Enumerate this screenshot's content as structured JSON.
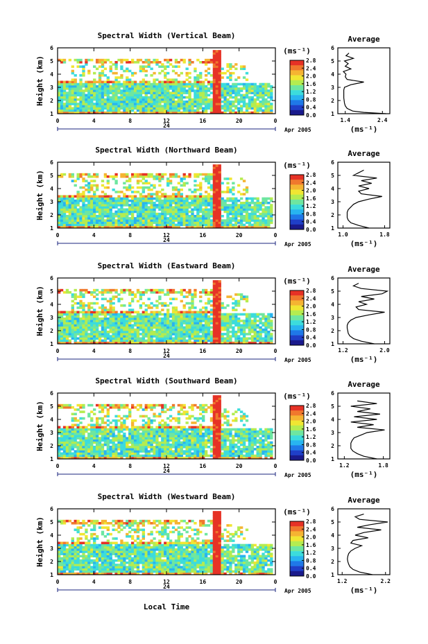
{
  "figure": {
    "x_label": "Local Time",
    "date_label": "Apr 2005",
    "day_label": "24",
    "colorbar_unit": "(ms⁻¹)",
    "avg_title": "Average",
    "avg_unit": "(ms⁻¹)",
    "y_label": "Height (km)"
  },
  "colors": {
    "scale": [
      "#1a1a8c",
      "#1f3fc8",
      "#1f78e8",
      "#28b4f0",
      "#3cdcdc",
      "#6ee6a0",
      "#b4ec50",
      "#f0e632",
      "#f5b432",
      "#f0782d",
      "#e63226"
    ]
  },
  "chart_data": [
    {
      "type": "heatmap",
      "title": "Spectral Width (Vertical Beam)",
      "xlabel": "",
      "ylabel": "Height (km)",
      "x_ticks": [
        "0",
        "4",
        "8",
        "12",
        "16",
        "20",
        "0"
      ],
      "y_ticks": [
        "1",
        "2",
        "3",
        "4",
        "5",
        "6"
      ],
      "colorbar_ticks": [
        "0.0",
        "0.4",
        "0.8",
        "1.2",
        "1.6",
        "2.0",
        "2.4",
        "2.8"
      ],
      "colorbar_range": [
        0,
        2.8
      ],
      "time_range": [
        0,
        24
      ],
      "height_range": [
        1,
        6
      ],
      "average": {
        "x_ticks": [
          "1.4",
          "2.4"
        ],
        "x_range": [
          1.2,
          2.6
        ],
        "heights": [
          1.0,
          1.1,
          1.2,
          1.4,
          1.6,
          1.8,
          2.0,
          2.2,
          2.4,
          2.6,
          2.8,
          3.0,
          3.2,
          3.4,
          3.6,
          3.8,
          4.0,
          4.2,
          4.4,
          4.6,
          4.8,
          5.0,
          5.2,
          5.4,
          5.6
        ],
        "values": [
          2.5,
          1.9,
          1.6,
          1.45,
          1.4,
          1.38,
          1.37,
          1.36,
          1.36,
          1.36,
          1.36,
          1.38,
          1.55,
          1.9,
          1.45,
          1.4,
          1.42,
          1.35,
          1.55,
          1.4,
          1.48,
          1.38,
          1.62,
          1.42,
          1.5
        ]
      }
    },
    {
      "type": "heatmap",
      "title": "Spectral Width (Northward Beam)",
      "xlabel": "",
      "ylabel": "Height (km)",
      "x_ticks": [
        "0",
        "4",
        "8",
        "12",
        "16",
        "20",
        "0"
      ],
      "y_ticks": [
        "1",
        "2",
        "3",
        "4",
        "5",
        "6"
      ],
      "colorbar_ticks": [
        "0.0",
        "0.4",
        "0.8",
        "1.2",
        "1.6",
        "2.0",
        "2.4",
        "2.8"
      ],
      "colorbar_range": [
        0,
        2.8
      ],
      "time_range": [
        0,
        24
      ],
      "height_range": [
        1,
        6
      ],
      "average": {
        "x_ticks": [
          "1.0",
          "1.8"
        ],
        "x_range": [
          0.9,
          1.9
        ],
        "heights": [
          1.0,
          1.2,
          1.4,
          1.6,
          1.8,
          2.0,
          2.2,
          2.4,
          2.6,
          2.8,
          3.0,
          3.2,
          3.4,
          3.6,
          3.8,
          4.0,
          4.2,
          4.4,
          4.6,
          4.8,
          5.0,
          5.2,
          5.4
        ],
        "values": [
          1.5,
          1.3,
          1.15,
          1.1,
          1.08,
          1.08,
          1.08,
          1.1,
          1.15,
          1.2,
          1.3,
          1.5,
          1.75,
          1.35,
          1.3,
          1.5,
          1.3,
          1.55,
          1.35,
          1.65,
          1.2,
          1.3,
          1.4
        ]
      }
    },
    {
      "type": "heatmap",
      "title": "Spectral Width (Eastward Beam)",
      "xlabel": "",
      "ylabel": "Height (km)",
      "x_ticks": [
        "0",
        "4",
        "8",
        "12",
        "16",
        "20",
        "0"
      ],
      "y_ticks": [
        "1",
        "2",
        "3",
        "4",
        "5",
        "6"
      ],
      "colorbar_ticks": [
        "0.0",
        "0.4",
        "0.8",
        "1.2",
        "1.6",
        "2.0",
        "2.4",
        "2.8"
      ],
      "colorbar_range": [
        0,
        2.8
      ],
      "time_range": [
        0,
        24
      ],
      "height_range": [
        1,
        6
      ],
      "average": {
        "x_ticks": [
          "1.2",
          "2.0"
        ],
        "x_range": [
          1.1,
          2.1
        ],
        "heights": [
          1.0,
          1.2,
          1.4,
          1.6,
          1.8,
          2.0,
          2.2,
          2.4,
          2.6,
          2.8,
          3.0,
          3.2,
          3.4,
          3.6,
          3.8,
          4.0,
          4.2,
          4.4,
          4.6,
          4.8,
          5.0,
          5.2,
          5.4,
          5.6
        ],
        "values": [
          1.8,
          1.55,
          1.4,
          1.33,
          1.3,
          1.29,
          1.28,
          1.28,
          1.3,
          1.35,
          1.45,
          1.7,
          2.0,
          1.5,
          1.45,
          1.65,
          1.5,
          1.8,
          1.55,
          1.95,
          2.05,
          1.55,
          1.4,
          1.5
        ]
      }
    },
    {
      "type": "heatmap",
      "title": "Spectral Width (Southward Beam)",
      "xlabel": "",
      "ylabel": "Height (km)",
      "x_ticks": [
        "0",
        "4",
        "8",
        "12",
        "16",
        "20",
        "0"
      ],
      "y_ticks": [
        "1",
        "2",
        "3",
        "4",
        "5",
        "6"
      ],
      "colorbar_ticks": [
        "0.0",
        "0.4",
        "0.8",
        "1.2",
        "1.6",
        "2.0",
        "2.4",
        "2.8"
      ],
      "colorbar_range": [
        0,
        2.8
      ],
      "time_range": [
        0,
        24
      ],
      "height_range": [
        1,
        6
      ],
      "average": {
        "x_ticks": [
          "1.2",
          "1.8"
        ],
        "x_range": [
          1.1,
          1.9
        ],
        "heights": [
          1.0,
          1.2,
          1.4,
          1.6,
          1.8,
          2.0,
          2.2,
          2.4,
          2.6,
          2.8,
          3.0,
          3.2,
          3.4,
          3.6,
          3.8,
          4.0,
          4.2,
          4.4,
          4.6,
          4.8,
          5.0,
          5.2,
          5.4
        ],
        "values": [
          1.7,
          1.5,
          1.4,
          1.33,
          1.3,
          1.3,
          1.3,
          1.32,
          1.35,
          1.45,
          1.55,
          1.82,
          1.4,
          1.65,
          1.3,
          1.7,
          1.35,
          1.75,
          1.4,
          1.6,
          1.3,
          1.7,
          1.4
        ]
      }
    },
    {
      "type": "heatmap",
      "title": "Spectral Width (Westward Beam)",
      "xlabel": "Local Time",
      "ylabel": "Height (km)",
      "x_ticks": [
        "0",
        "4",
        "8",
        "12",
        "16",
        "20",
        "0"
      ],
      "y_ticks": [
        "1",
        "2",
        "3",
        "4",
        "5",
        "6"
      ],
      "colorbar_ticks": [
        "0.0",
        "0.4",
        "0.8",
        "1.2",
        "1.6",
        "2.0",
        "2.4",
        "2.8"
      ],
      "colorbar_range": [
        0,
        2.8
      ],
      "time_range": [
        0,
        24
      ],
      "height_range": [
        1,
        6
      ],
      "average": {
        "x_ticks": [
          "1.2",
          "2.2"
        ],
        "x_range": [
          1.1,
          2.3
        ],
        "heights": [
          1.0,
          1.2,
          1.4,
          1.6,
          1.8,
          2.0,
          2.2,
          2.4,
          2.6,
          2.8,
          3.0,
          3.2,
          3.4,
          3.6,
          3.8,
          4.0,
          4.2,
          4.4,
          4.6,
          4.8,
          5.0,
          5.2,
          5.4,
          5.6
        ],
        "values": [
          1.9,
          1.6,
          1.45,
          1.38,
          1.35,
          1.33,
          1.32,
          1.33,
          1.35,
          1.4,
          1.5,
          1.65,
          1.4,
          1.45,
          1.8,
          1.5,
          1.7,
          2.1,
          1.55,
          1.85,
          2.25,
          1.6,
          1.5,
          1.7
        ]
      }
    }
  ]
}
